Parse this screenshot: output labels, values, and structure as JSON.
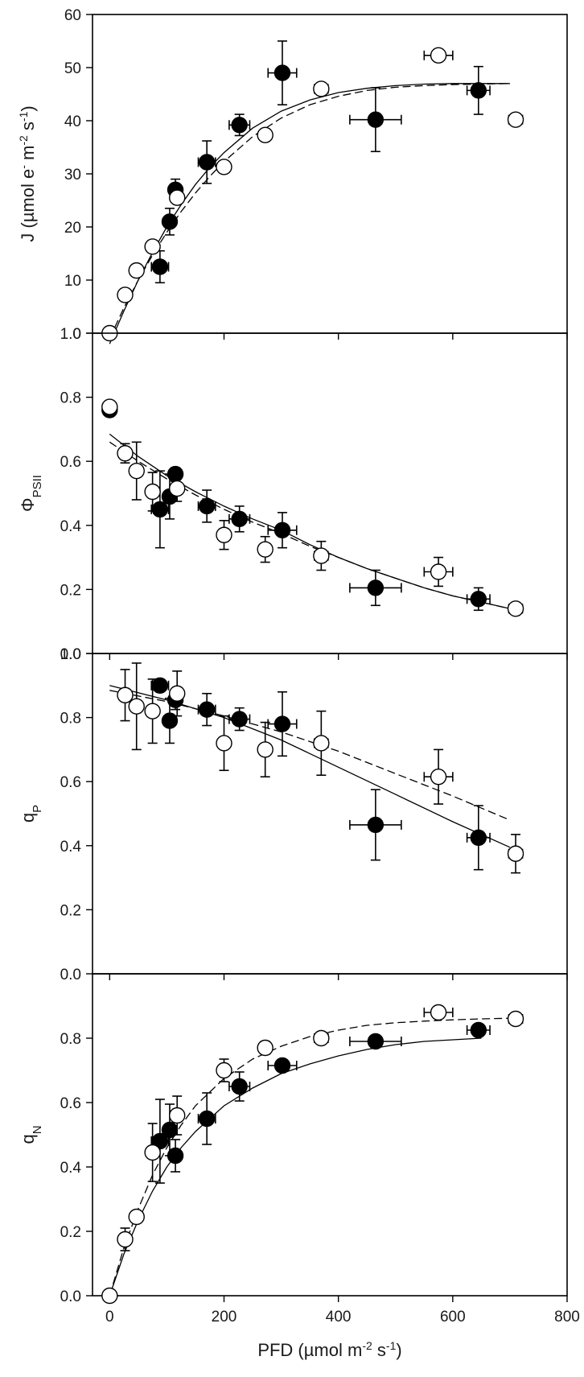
{
  "figure": {
    "xlabel": "PFD (µmol m⁻² s⁻¹)",
    "x_ticks": [
      "0",
      "200",
      "400",
      "600",
      "800"
    ]
  },
  "chart_data": [
    {
      "type": "scatter",
      "id": "J",
      "ylabel": "J (µmol e⁻ m⁻² s⁻¹)",
      "xlim": [
        -30,
        800
      ],
      "ylim": [
        0,
        60
      ],
      "y_ticks": [
        "0",
        "10",
        "20",
        "30",
        "40",
        "50",
        "60"
      ],
      "series": [
        {
          "name": "filled",
          "marker": "filled-circle",
          "points": [
            {
              "x": 88,
              "y": 12.5,
              "xerr": 15,
              "yerr": 3
            },
            {
              "x": 105,
              "y": 21,
              "xerr": 8,
              "yerr": 2.5
            },
            {
              "x": 115,
              "y": 27,
              "xerr": 7,
              "yerr": 2
            },
            {
              "x": 170,
              "y": 32.2,
              "xerr": 15,
              "yerr": 4
            },
            {
              "x": 227,
              "y": 39.2,
              "xerr": 18,
              "yerr": 2
            },
            {
              "x": 302,
              "y": 49,
              "xerr": 25,
              "yerr": 6
            },
            {
              "x": 465,
              "y": 40.2,
              "xerr": 45,
              "yerr": 6
            },
            {
              "x": 645,
              "y": 45.7,
              "xerr": 20,
              "yerr": 4.5
            }
          ]
        },
        {
          "name": "open",
          "marker": "open-circle",
          "points": [
            {
              "x": 0,
              "y": 0
            },
            {
              "x": 27,
              "y": 7.2
            },
            {
              "x": 47,
              "y": 11.8
            },
            {
              "x": 75,
              "y": 16.3
            },
            {
              "x": 118,
              "y": 25.5
            },
            {
              "x": 200,
              "y": 31.3
            },
            {
              "x": 272,
              "y": 37.3
            },
            {
              "x": 370,
              "y": 46,
              "xerr": 12
            },
            {
              "x": 575,
              "y": 52.3,
              "xerr": 25
            },
            {
              "x": 710,
              "y": 40.2,
              "xerr": 12
            }
          ]
        }
      ],
      "fits": [
        {
          "style": "solid",
          "points": [
            [
              0,
              -2
            ],
            [
              25,
              4.2
            ],
            [
              50,
              10
            ],
            [
              75,
              15.2
            ],
            [
              100,
              20
            ],
            [
              125,
              24.2
            ],
            [
              150,
              28
            ],
            [
              175,
              31.2
            ],
            [
              200,
              34
            ],
            [
              250,
              38.6
            ],
            [
              300,
              41.8
            ],
            [
              350,
              43.9
            ],
            [
              400,
              45.3
            ],
            [
              450,
              46.1
            ],
            [
              500,
              46.6
            ],
            [
              550,
              46.9
            ],
            [
              600,
              47
            ],
            [
              650,
              47
            ],
            [
              700,
              47
            ]
          ]
        },
        {
          "style": "dashed",
          "points": [
            [
              0,
              -1
            ],
            [
              25,
              4.8
            ],
            [
              50,
              10
            ],
            [
              75,
              14.7
            ],
            [
              100,
              19
            ],
            [
              125,
              22.9
            ],
            [
              150,
              26.4
            ],
            [
              175,
              29.5
            ],
            [
              200,
              32.3
            ],
            [
              250,
              37
            ],
            [
              300,
              40.5
            ],
            [
              350,
              43
            ],
            [
              400,
              44.6
            ],
            [
              450,
              45.7
            ],
            [
              500,
              46.3
            ],
            [
              550,
              46.6
            ],
            [
              600,
              46.8
            ],
            [
              650,
              46.9
            ],
            [
              700,
              47
            ]
          ]
        }
      ]
    },
    {
      "type": "scatter",
      "id": "PhiPSII",
      "ylabel": "ΦPSII",
      "xlim": [
        -30,
        800
      ],
      "ylim": [
        0,
        1
      ],
      "y_ticks": [
        "0.0",
        "0.2",
        "0.4",
        "0.6",
        "0.8",
        "1.0"
      ],
      "series": [
        {
          "name": "filled",
          "marker": "filled-circle",
          "points": [
            {
              "x": 0,
              "y": 0.76
            },
            {
              "x": 88,
              "y": 0.45,
              "xerr": 15,
              "yerr": 0.12
            },
            {
              "x": 105,
              "y": 0.49,
              "xerr": 8,
              "yerr": 0.07
            },
            {
              "x": 115,
              "y": 0.56,
              "xerr": 8,
              "yerr": 0.02
            },
            {
              "x": 170,
              "y": 0.46,
              "xerr": 15,
              "yerr": 0.05
            },
            {
              "x": 227,
              "y": 0.42,
              "xerr": 18,
              "yerr": 0.04
            },
            {
              "x": 302,
              "y": 0.385,
              "xerr": 25,
              "yerr": 0.055
            },
            {
              "x": 465,
              "y": 0.205,
              "xerr": 45,
              "yerr": 0.055
            },
            {
              "x": 645,
              "y": 0.17,
              "xerr": 20,
              "yerr": 0.035
            }
          ]
        },
        {
          "name": "open",
          "marker": "open-circle",
          "points": [
            {
              "x": 0,
              "y": 0.77
            },
            {
              "x": 27,
              "y": 0.625,
              "yerr": 0.03
            },
            {
              "x": 47,
              "y": 0.57,
              "yerr": 0.09
            },
            {
              "x": 75,
              "y": 0.505,
              "yerr": 0.06
            },
            {
              "x": 118,
              "y": 0.515,
              "yerr": 0.04
            },
            {
              "x": 200,
              "y": 0.37,
              "yerr": 0.045
            },
            {
              "x": 272,
              "y": 0.325,
              "yerr": 0.04
            },
            {
              "x": 370,
              "y": 0.305,
              "xerr": 12,
              "yerr": 0.045
            },
            {
              "x": 575,
              "y": 0.255,
              "xerr": 25,
              "yerr": 0.045
            },
            {
              "x": 710,
              "y": 0.14,
              "xerr": 12
            }
          ]
        }
      ],
      "fits": [
        {
          "style": "solid",
          "points": [
            [
              0,
              0.685
            ],
            [
              50,
              0.615
            ],
            [
              100,
              0.555
            ],
            [
              150,
              0.505
            ],
            [
              200,
              0.46
            ],
            [
              250,
              0.42
            ],
            [
              300,
              0.385
            ],
            [
              350,
              0.34
            ],
            [
              400,
              0.3
            ],
            [
              450,
              0.265
            ],
            [
              500,
              0.235
            ],
            [
              550,
              0.205
            ],
            [
              600,
              0.18
            ],
            [
              650,
              0.16
            ],
            [
              700,
              0.14
            ]
          ]
        },
        {
          "style": "dashed",
          "points": [
            [
              0,
              0.66
            ],
            [
              50,
              0.6
            ],
            [
              100,
              0.545
            ],
            [
              150,
              0.495
            ],
            [
              200,
              0.45
            ],
            [
              250,
              0.41
            ],
            [
              300,
              0.375
            ],
            [
              350,
              0.335
            ],
            [
              400,
              0.3
            ],
            [
              450,
              0.265
            ],
            [
              500,
              0.235
            ],
            [
              550,
              0.205
            ],
            [
              600,
              0.18
            ],
            [
              650,
              0.16
            ],
            [
              700,
              0.14
            ]
          ]
        }
      ]
    },
    {
      "type": "scatter",
      "id": "qP",
      "ylabel": "qP",
      "xlim": [
        -30,
        800
      ],
      "ylim": [
        0,
        1
      ],
      "y_ticks": [
        "0.0",
        "0.2",
        "0.4",
        "0.6",
        "0.8",
        "1.0"
      ],
      "series": [
        {
          "name": "filled",
          "marker": "filled-circle",
          "points": [
            {
              "x": 88,
              "y": 0.9,
              "xerr": 15
            },
            {
              "x": 105,
              "y": 0.79,
              "xerr": 8,
              "yerr": 0.07
            },
            {
              "x": 115,
              "y": 0.855,
              "xerr": 8,
              "yerr": 0.03
            },
            {
              "x": 170,
              "y": 0.825,
              "xerr": 15,
              "yerr": 0.05
            },
            {
              "x": 227,
              "y": 0.795,
              "xerr": 18,
              "yerr": 0.035
            },
            {
              "x": 302,
              "y": 0.78,
              "xerr": 25,
              "yerr": 0.1
            },
            {
              "x": 465,
              "y": 0.465,
              "xerr": 45,
              "yerr": 0.11
            },
            {
              "x": 645,
              "y": 0.425,
              "xerr": 20,
              "yerr": 0.1
            }
          ]
        },
        {
          "name": "open",
          "marker": "open-circle",
          "points": [
            {
              "x": 27,
              "y": 0.87,
              "yerr": 0.08
            },
            {
              "x": 47,
              "y": 0.835,
              "yerr": 0.135
            },
            {
              "x": 75,
              "y": 0.82,
              "yerr": 0.1
            },
            {
              "x": 118,
              "y": 0.875,
              "yerr": 0.07
            },
            {
              "x": 200,
              "y": 0.72,
              "yerr": 0.085
            },
            {
              "x": 272,
              "y": 0.7,
              "yerr": 0.085
            },
            {
              "x": 370,
              "y": 0.72,
              "xerr": 12,
              "yerr": 0.1
            },
            {
              "x": 575,
              "y": 0.615,
              "xerr": 25,
              "yerr": 0.085
            },
            {
              "x": 710,
              "y": 0.375,
              "xerr": 12,
              "yerr": 0.06
            }
          ]
        }
      ],
      "fits": [
        {
          "style": "solid",
          "points": [
            [
              0,
              0.9
            ],
            [
              100,
              0.855
            ],
            [
              200,
              0.8
            ],
            [
              300,
              0.73
            ],
            [
              400,
              0.645
            ],
            [
              500,
              0.56
            ],
            [
              600,
              0.475
            ],
            [
              700,
              0.395
            ]
          ]
        },
        {
          "style": "dashed",
          "points": [
            [
              0,
              0.885
            ],
            [
              100,
              0.85
            ],
            [
              200,
              0.805
            ],
            [
              300,
              0.755
            ],
            [
              400,
              0.695
            ],
            [
              500,
              0.625
            ],
            [
              600,
              0.555
            ],
            [
              700,
              0.48
            ]
          ]
        }
      ]
    },
    {
      "type": "scatter",
      "id": "qN",
      "ylabel": "qN",
      "xlim": [
        -30,
        800
      ],
      "ylim": [
        0,
        1
      ],
      "y_ticks": [
        "0.0",
        "0.2",
        "0.4",
        "0.6",
        "0.8"
      ],
      "series": [
        {
          "name": "filled",
          "marker": "filled-circle",
          "points": [
            {
              "x": 88,
              "y": 0.48,
              "xerr": 15,
              "yerr": 0.13
            },
            {
              "x": 105,
              "y": 0.515,
              "xerr": 8,
              "yerr": 0.08
            },
            {
              "x": 115,
              "y": 0.435,
              "xerr": 8,
              "yerr": 0.05
            },
            {
              "x": 170,
              "y": 0.55,
              "xerr": 15,
              "yerr": 0.08
            },
            {
              "x": 227,
              "y": 0.65,
              "xerr": 18,
              "yerr": 0.045
            },
            {
              "x": 302,
              "y": 0.715,
              "xerr": 25
            },
            {
              "x": 465,
              "y": 0.79,
              "xerr": 45
            },
            {
              "x": 645,
              "y": 0.825,
              "xerr": 20
            }
          ]
        },
        {
          "name": "open",
          "marker": "open-circle",
          "points": [
            {
              "x": 0,
              "y": 0
            },
            {
              "x": 27,
              "y": 0.175,
              "yerr": 0.035
            },
            {
              "x": 47,
              "y": 0.245
            },
            {
              "x": 75,
              "y": 0.445,
              "yerr": 0.09
            },
            {
              "x": 118,
              "y": 0.56,
              "yerr": 0.06
            },
            {
              "x": 200,
              "y": 0.7,
              "yerr": 0.035
            },
            {
              "x": 272,
              "y": 0.77,
              "yerr": 0.02
            },
            {
              "x": 370,
              "y": 0.8,
              "xerr": 12
            },
            {
              "x": 575,
              "y": 0.88,
              "xerr": 25
            },
            {
              "x": 710,
              "y": 0.86,
              "xerr": 12
            }
          ]
        }
      ],
      "fits": [
        {
          "style": "solid",
          "points": [
            [
              0,
              0
            ],
            [
              25,
              0.13
            ],
            [
              50,
              0.235
            ],
            [
              75,
              0.325
            ],
            [
              100,
              0.4
            ],
            [
              125,
              0.46
            ],
            [
              150,
              0.51
            ],
            [
              200,
              0.59
            ],
            [
              250,
              0.645
            ],
            [
              300,
              0.69
            ],
            [
              350,
              0.72
            ],
            [
              400,
              0.745
            ],
            [
              450,
              0.765
            ],
            [
              500,
              0.78
            ],
            [
              550,
              0.79
            ],
            [
              600,
              0.795
            ],
            [
              650,
              0.8
            ]
          ]
        },
        {
          "style": "dashed",
          "points": [
            [
              0,
              0
            ],
            [
              25,
              0.15
            ],
            [
              50,
              0.27
            ],
            [
              75,
              0.375
            ],
            [
              100,
              0.46
            ],
            [
              125,
              0.53
            ],
            [
              150,
              0.59
            ],
            [
              200,
              0.675
            ],
            [
              250,
              0.735
            ],
            [
              300,
              0.775
            ],
            [
              350,
              0.805
            ],
            [
              400,
              0.825
            ],
            [
              450,
              0.84
            ],
            [
              500,
              0.848
            ],
            [
              550,
              0.853
            ],
            [
              600,
              0.857
            ],
            [
              650,
              0.86
            ],
            [
              700,
              0.862
            ]
          ]
        }
      ]
    }
  ]
}
